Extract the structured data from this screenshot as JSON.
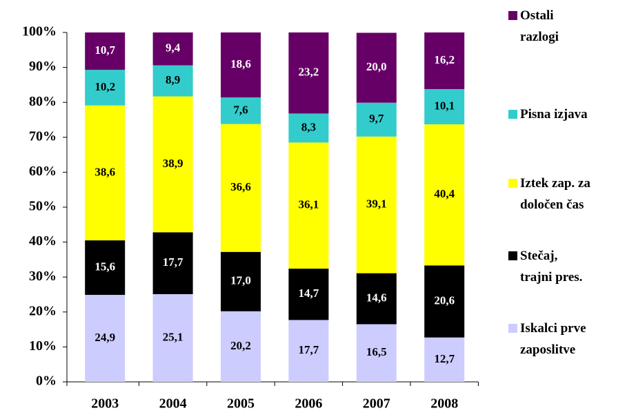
{
  "chart_data": {
    "type": "stacked_bar",
    "categories": [
      "2003",
      "2004",
      "2005",
      "2006",
      "2007",
      "2008"
    ],
    "series": [
      {
        "name": "Iskalci prve\nzaposlitve",
        "color": "#ccccff",
        "values": [
          24.9,
          25.1,
          20.2,
          17.7,
          16.5,
          12.7
        ],
        "value_labels": [
          "24,9",
          "25,1",
          "20,2",
          "17,7",
          "16,5",
          "12,7"
        ]
      },
      {
        "name": "Stečaj,\ntrajni pres.",
        "color": "#000000",
        "values": [
          15.6,
          17.7,
          17.0,
          14.7,
          14.6,
          20.6
        ],
        "value_labels": [
          "15,6",
          "17,7",
          "17,0",
          "14,7",
          "14,6",
          "20,6"
        ]
      },
      {
        "name": "Iztek zap. za\ndoločen čas",
        "color": "#ffff00",
        "values": [
          38.6,
          38.9,
          36.6,
          36.1,
          39.1,
          40.4
        ],
        "value_labels": [
          "38,6",
          "38,9",
          "36,6",
          "36,1",
          "39,1",
          "40,4"
        ]
      },
      {
        "name": "Pisna izjava",
        "color": "#33cccc",
        "values": [
          10.2,
          8.9,
          7.6,
          8.3,
          9.7,
          10.1
        ],
        "value_labels": [
          "10,2",
          "8,9",
          "7,6",
          "8,3",
          "9,7",
          "10,1"
        ]
      },
      {
        "name": "Ostali\nrazlogi",
        "color": "#660066",
        "values": [
          10.7,
          9.4,
          18.6,
          23.2,
          20.0,
          16.2
        ],
        "value_labels": [
          "10,7",
          "9,4",
          "18,6",
          "23,2",
          "20,0",
          "16,2"
        ]
      }
    ],
    "ylim": [
      0,
      100
    ],
    "yticks": [
      {
        "value": 0,
        "label": "0%"
      },
      {
        "value": 10,
        "label": "10%"
      },
      {
        "value": 20,
        "label": "20%"
      },
      {
        "value": 30,
        "label": "30%"
      },
      {
        "value": 40,
        "label": "40%"
      },
      {
        "value": 50,
        "label": "50%"
      },
      {
        "value": 60,
        "label": "60%"
      },
      {
        "value": 70,
        "label": "70%"
      },
      {
        "value": 80,
        "label": "80%"
      },
      {
        "value": 90,
        "label": "90%"
      },
      {
        "value": 100,
        "label": "100%"
      }
    ],
    "legend": "right"
  }
}
